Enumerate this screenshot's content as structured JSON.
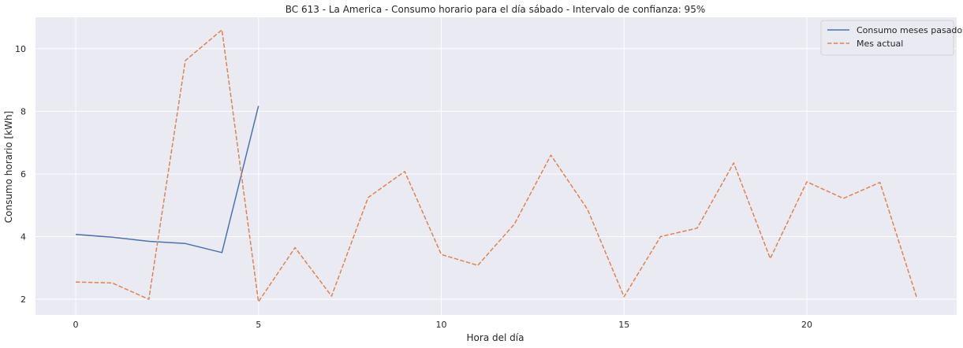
{
  "chart_data": {
    "type": "line",
    "title": "BC 613 - La America - Consumo horario para el día sábado - Intervalo de confianza: 95%",
    "xlabel": "Hora del día",
    "ylabel": "Consumo horario [kWh]",
    "xlim": [
      -1.1,
      24.1
    ],
    "ylim": [
      1.5,
      11.0
    ],
    "xticks": [
      0,
      5,
      10,
      15,
      20
    ],
    "yticks": [
      2,
      4,
      6,
      8,
      10
    ],
    "grid": true,
    "legend_position": "top-right",
    "background": "#eaeaf2",
    "series": [
      {
        "name": "Consumo meses pasados",
        "color": "#4c72b0",
        "dash": "solid",
        "x": [
          0,
          1,
          2,
          3,
          4,
          5
        ],
        "values": [
          4.07,
          3.98,
          3.85,
          3.78,
          3.49,
          8.17
        ]
      },
      {
        "name": "Mes actual",
        "color": "#dd8452",
        "dash": "dashed",
        "x": [
          0,
          1,
          2,
          3,
          4,
          5,
          6,
          7,
          8,
          9,
          10,
          11,
          12,
          13,
          14,
          15,
          16,
          17,
          18,
          19,
          20,
          21,
          22,
          23
        ],
        "values": [
          2.55,
          2.52,
          2.0,
          9.62,
          10.6,
          1.92,
          3.65,
          2.1,
          5.25,
          6.08,
          3.43,
          3.08,
          4.4,
          6.6,
          4.87,
          2.08,
          4.0,
          4.27,
          6.35,
          3.3,
          5.75,
          5.22,
          5.73,
          2.08
        ]
      }
    ]
  }
}
